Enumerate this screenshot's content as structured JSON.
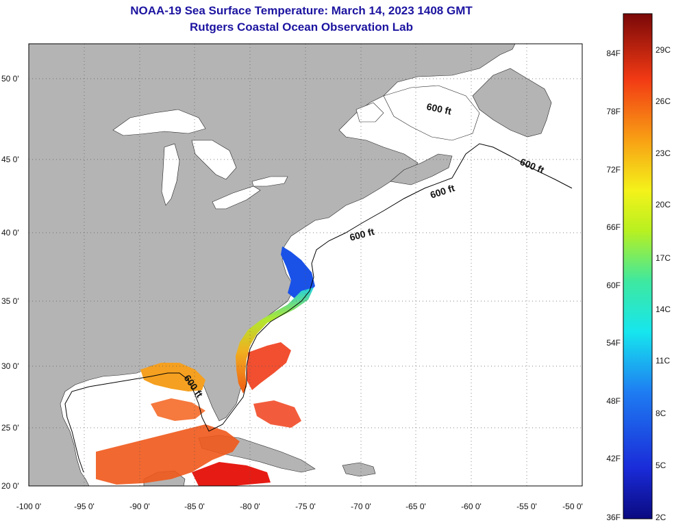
{
  "header": {
    "title": "NOAA-19 Sea Surface Temperature:  March 14, 2023 1408 GMT",
    "subtitle": "Rutgers Coastal Ocean Observation Lab"
  },
  "map": {
    "lon_ticks": [
      "-100 0'",
      "-95 0'",
      "-90 0'",
      "-85 0'",
      "-80 0'",
      "-75 0'",
      "-70 0'",
      "-65 0'",
      "-60 0'",
      "-55 0'",
      "-50 0'"
    ],
    "lat_ticks": [
      "50 0'",
      "45 0'",
      "40 0'",
      "35 0'",
      "30 0'",
      "25 0'",
      "20 0'"
    ],
    "contour_labels": [
      "600 ft",
      "600 ft",
      "600 ft",
      "600 ft",
      "600 ft"
    ],
    "colors": {
      "land": "#b4b4b4",
      "ocean": "#ffffff",
      "water_inland": "#ffffff"
    }
  },
  "colorbar": {
    "fahrenheit_labels": [
      "84F",
      "78F",
      "72F",
      "66F",
      "60F",
      "54F",
      "48F",
      "42F",
      "36F"
    ],
    "celsius_labels": [
      "29C",
      "26C",
      "23C",
      "20C",
      "17C",
      "14C",
      "11C",
      "8C",
      "5C",
      "2C"
    ]
  }
}
